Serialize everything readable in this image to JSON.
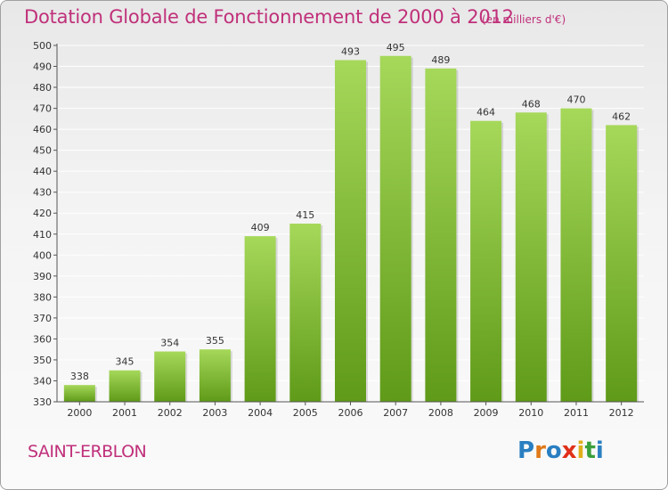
{
  "chart_data": {
    "type": "bar",
    "title": "Dotation Globale de Fonctionnement de 2000 à 2012",
    "subtitle": "(en milliers d'€)",
    "categories": [
      "2000",
      "2001",
      "2002",
      "2003",
      "2004",
      "2005",
      "2006",
      "2007",
      "2008",
      "2009",
      "2010",
      "2011",
      "2012"
    ],
    "values": [
      338,
      345,
      354,
      355,
      409,
      415,
      493,
      495,
      489,
      464,
      468,
      470,
      462
    ],
    "ylim": [
      330,
      500
    ],
    "yticks": [
      330,
      340,
      350,
      360,
      370,
      380,
      390,
      400,
      410,
      420,
      430,
      440,
      450,
      460,
      470,
      480,
      490,
      500
    ],
    "grid": true,
    "bar_color_top": "#a6d85a",
    "bar_color_bottom": "#5f9a18"
  },
  "commune_name": "SAINT-ERBLON",
  "logo": {
    "letters": [
      "P",
      "r",
      "o",
      "x",
      "i",
      "t",
      "i"
    ],
    "colors": [
      "#2a7fc1",
      "#e07a1a",
      "#2a7fc1",
      "#e0301a",
      "#e0b01a",
      "#3aa03a",
      "#2a7fc1"
    ]
  },
  "colors": {
    "accent": "#c0307a",
    "grid": "#ffffff",
    "axis": "#555555"
  }
}
